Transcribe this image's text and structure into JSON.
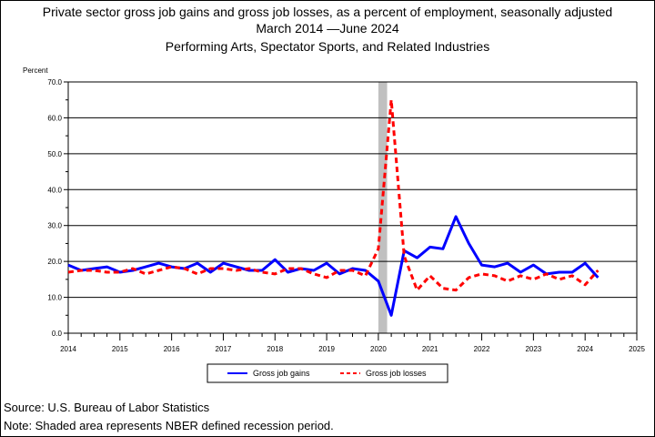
{
  "header": {
    "title_line1": "Private sector gross job gains and gross job losses, as a percent of employment, seasonally adjusted",
    "title_line2": "March 2014 —June 2024",
    "title_line3": "Performing Arts, Spectator Sports, and Related Industries"
  },
  "footer": {
    "source": "Source: U.S. Bureau of Labor Statistics",
    "note": "Note: Shaded area represents NBER defined recession period."
  },
  "chart_data": {
    "type": "line",
    "ylabel": "Percent",
    "ylim": [
      0,
      70
    ],
    "yticks": [
      "0.0",
      "10.0",
      "20.0",
      "30.0",
      "40.0",
      "50.0",
      "60.0",
      "70.0"
    ],
    "xlim": [
      2014,
      2025
    ],
    "xticks": [
      "2014",
      "2015",
      "2016",
      "2017",
      "2018",
      "2019",
      "2020",
      "2021",
      "2022",
      "2023",
      "2024",
      "2025"
    ],
    "grid": true,
    "legend_position": "bottom-center",
    "recession": {
      "start": 2020.0,
      "end": 2020.17,
      "color": "#c0c0c0"
    },
    "series": [
      {
        "name": "Gross job gains",
        "color": "#0000ff",
        "style": "solid",
        "x": [
          2014.0,
          2014.25,
          2014.5,
          2014.75,
          2015.0,
          2015.25,
          2015.5,
          2015.75,
          2016.0,
          2016.25,
          2016.5,
          2016.75,
          2017.0,
          2017.25,
          2017.5,
          2017.75,
          2018.0,
          2018.25,
          2018.5,
          2018.75,
          2019.0,
          2019.25,
          2019.5,
          2019.75,
          2020.0,
          2020.25,
          2020.5,
          2020.75,
          2021.0,
          2021.25,
          2021.5,
          2021.75,
          2022.0,
          2022.25,
          2022.5,
          2022.75,
          2023.0,
          2023.25,
          2023.5,
          2023.75,
          2024.0,
          2024.25
        ],
        "values": [
          19.0,
          17.5,
          18.0,
          18.5,
          17.0,
          17.5,
          18.5,
          19.5,
          18.5,
          18.0,
          19.5,
          17.0,
          19.5,
          18.5,
          17.5,
          17.5,
          20.5,
          17.0,
          18.0,
          17.5,
          19.5,
          16.5,
          18.0,
          17.5,
          14.5,
          5.0,
          23.0,
          21.0,
          24.0,
          23.5,
          32.5,
          25.0,
          19.0,
          18.5,
          19.5,
          17.0,
          19.0,
          16.5,
          17.0,
          17.0,
          19.5,
          15.5
        ]
      },
      {
        "name": "Gross job losses",
        "color": "#ff0000",
        "style": "dashed",
        "x": [
          2014.0,
          2014.25,
          2014.5,
          2014.75,
          2015.0,
          2015.25,
          2015.5,
          2015.75,
          2016.0,
          2016.25,
          2016.5,
          2016.75,
          2017.0,
          2017.25,
          2017.5,
          2017.75,
          2018.0,
          2018.25,
          2018.5,
          2018.75,
          2019.0,
          2019.25,
          2019.5,
          2019.75,
          2020.0,
          2020.25,
          2020.5,
          2020.75,
          2021.0,
          2021.25,
          2021.5,
          2021.75,
          2022.0,
          2022.25,
          2022.5,
          2022.75,
          2023.0,
          2023.25,
          2023.5,
          2023.75,
          2024.0,
          2024.25
        ],
        "values": [
          17.0,
          17.5,
          17.5,
          17.0,
          17.0,
          18.0,
          16.5,
          17.5,
          18.5,
          18.0,
          16.5,
          18.0,
          18.0,
          17.5,
          18.0,
          17.0,
          16.5,
          18.0,
          18.0,
          16.5,
          15.5,
          17.5,
          17.5,
          16.0,
          23.5,
          65.0,
          21.5,
          12.0,
          16.0,
          12.5,
          12.0,
          15.5,
          16.5,
          16.0,
          14.5,
          16.0,
          15.0,
          16.5,
          15.0,
          16.0,
          13.5,
          17.5
        ]
      }
    ]
  }
}
